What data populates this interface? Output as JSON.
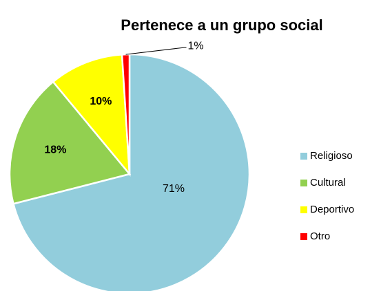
{
  "chart_data": {
    "type": "pie",
    "title": "Pertenece a un grupo social",
    "categories": [
      "Religioso",
      "Cultural",
      "Deportivo",
      "Otro"
    ],
    "values": [
      71,
      18,
      10,
      1
    ],
    "value_labels": [
      "71%",
      "18%",
      "10%",
      "1%"
    ],
    "colors": [
      "#92cddc",
      "#92d050",
      "#ffff00",
      "#ff0000"
    ],
    "legend": "right"
  }
}
